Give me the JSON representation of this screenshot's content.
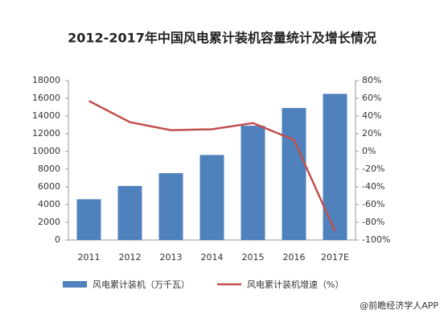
{
  "chart_data": {
    "type": "bar_line",
    "title": "2012-2017年中国风电累计装机容量统计及增长情况",
    "categories": [
      "2011",
      "2012",
      "2013",
      "2014",
      "2015",
      "2016",
      "2017E"
    ],
    "series": [
      {
        "name": "风电累计装机（万千瓦）",
        "type": "bar",
        "color": "#4f81bd",
        "values": [
          4600,
          6100,
          7550,
          9600,
          12900,
          14900,
          16500
        ]
      },
      {
        "name": "风电累计装机增速（%）",
        "type": "line",
        "color": "#c0504d",
        "axis": "y2",
        "values": [
          57,
          33,
          24,
          25,
          32,
          13,
          -90
        ]
      }
    ],
    "ylim": [
      0,
      18000
    ],
    "yticks": [
      0,
      2000,
      4000,
      6000,
      8000,
      10000,
      12000,
      14000,
      16000,
      18000
    ],
    "y2lim": [
      -100,
      80
    ],
    "y2ticks": [
      {
        "value": -100,
        "label": "-100%"
      },
      {
        "value": -80,
        "label": "-80%"
      },
      {
        "value": -60,
        "label": "-60%"
      },
      {
        "value": -40,
        "label": "-40%"
      },
      {
        "value": -20,
        "label": "-20%"
      },
      {
        "value": 0,
        "label": "0%"
      },
      {
        "value": 20,
        "label": "20%"
      },
      {
        "value": 40,
        "label": "40%"
      },
      {
        "value": 60,
        "label": "60%"
      },
      {
        "value": 80,
        "label": "80%"
      }
    ],
    "grid": false,
    "source": "@前瞻经济学人APP"
  }
}
